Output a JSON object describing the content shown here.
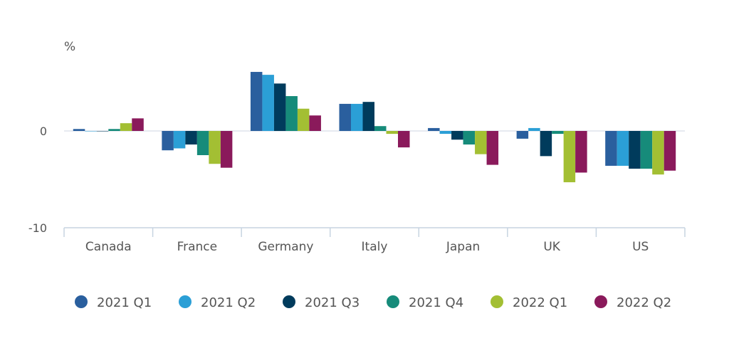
{
  "chart_data": {
    "type": "bar",
    "unit_label": "%",
    "categories": [
      "Canada",
      "France",
      "Germany",
      "Italy",
      "Japan",
      "UK",
      "US"
    ],
    "ylim": [
      -10,
      10
    ],
    "yticks": [
      {
        "value": 0,
        "label": "0"
      },
      {
        "value": -10,
        "label": "-10"
      }
    ],
    "grid": false,
    "legend_position": "bottom",
    "series": [
      {
        "name": "2021 Q1",
        "color": "#2a5f9e",
        "values": [
          0.2,
          -2.0,
          6.1,
          2.8,
          0.3,
          -0.8,
          -3.6
        ]
      },
      {
        "name": "2021 Q2",
        "color": "#2b9fd6",
        "values": [
          0.0,
          -1.8,
          5.8,
          2.8,
          -0.3,
          0.3,
          -3.6
        ]
      },
      {
        "name": "2021 Q3",
        "color": "#003b5c",
        "values": [
          0.0,
          -1.4,
          4.9,
          3.0,
          -0.9,
          -2.6,
          -3.9
        ]
      },
      {
        "name": "2021 Q4",
        "color": "#168b7a",
        "values": [
          0.2,
          -2.5,
          3.6,
          0.5,
          -1.4,
          -0.3,
          -3.9
        ]
      },
      {
        "name": "2022 Q1",
        "color": "#a3bf33",
        "values": [
          0.8,
          -3.4,
          2.3,
          -0.3,
          -2.4,
          -5.3,
          -4.5
        ]
      },
      {
        "name": "2022 Q2",
        "color": "#8a1a5b",
        "values": [
          1.3,
          -3.8,
          1.6,
          -1.7,
          -3.5,
          -4.3,
          -4.1
        ]
      }
    ]
  }
}
